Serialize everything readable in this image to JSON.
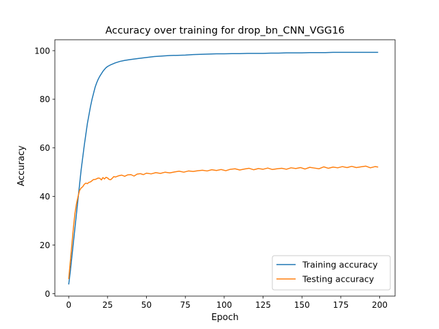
{
  "chart_data": {
    "type": "line",
    "title": "Accuracy over training for drop_bn_CNN_VGG16",
    "xlabel": "Epoch",
    "ylabel": "Accuracy",
    "xlim": [
      -8.9,
      209.9
    ],
    "ylim": [
      -1,
      104.5
    ],
    "xticks": [
      0,
      25,
      50,
      75,
      100,
      125,
      150,
      175,
      200
    ],
    "yticks": [
      0,
      20,
      40,
      60,
      80,
      100
    ],
    "grid": false,
    "legend_position": "bottom-right",
    "series": [
      {
        "name": "Training accuracy",
        "color": "#1f77b4",
        "x": [
          0,
          1,
          2,
          3,
          4,
          5,
          6,
          7,
          8,
          9,
          10,
          11,
          12,
          13,
          14,
          15,
          16,
          17,
          18,
          19,
          20,
          21,
          22,
          23,
          24,
          25,
          27,
          30,
          33,
          36,
          40,
          45,
          50,
          55,
          60,
          65,
          70,
          75,
          80,
          85,
          90,
          95,
          100,
          105,
          110,
          115,
          120,
          125,
          130,
          135,
          140,
          145,
          150,
          155,
          160,
          165,
          170,
          175,
          180,
          185,
          190,
          195,
          199
        ],
        "values": [
          3.8,
          9,
          15,
          21,
          27,
          33,
          39,
          45,
          51,
          56,
          61,
          65.5,
          70,
          73.5,
          77,
          80,
          82.5,
          85,
          86.8,
          88.3,
          89.5,
          90.5,
          91.5,
          92.3,
          93,
          93.5,
          94.2,
          95,
          95.6,
          96,
          96.4,
          96.8,
          97.2,
          97.6,
          97.8,
          98,
          98.1,
          98.2,
          98.4,
          98.5,
          98.6,
          98.7,
          98.7,
          98.8,
          98.8,
          98.9,
          98.9,
          98.9,
          99,
          99,
          99.1,
          99.1,
          99.1,
          99.2,
          99.2,
          99.2,
          99.3,
          99.3,
          99.3,
          99.3,
          99.3,
          99.3,
          99.3
        ]
      },
      {
        "name": "Testing accuracy",
        "color": "#ff7f0e",
        "x": [
          0,
          1,
          2,
          3,
          4,
          5,
          6,
          7,
          8,
          9,
          10,
          11,
          12,
          13,
          14,
          15,
          16,
          17,
          18,
          19,
          20,
          21,
          22,
          23,
          24,
          25,
          26,
          27,
          28,
          29,
          30,
          32,
          34,
          36,
          38,
          40,
          42,
          44,
          46,
          48,
          50,
          53,
          56,
          59,
          62,
          65,
          68,
          71,
          74,
          77,
          80,
          83,
          86,
          89,
          92,
          95,
          98,
          101,
          104,
          107,
          110,
          113,
          116,
          119,
          122,
          125,
          128,
          131,
          134,
          137,
          140,
          143,
          146,
          149,
          152,
          155,
          158,
          161,
          164,
          167,
          170,
          173,
          176,
          179,
          182,
          185,
          188,
          191,
          194,
          197,
          199
        ],
        "values": [
          6,
          13,
          20,
          27,
          33,
          37,
          40,
          42.5,
          43.5,
          44,
          45,
          45.5,
          45.3,
          45.8,
          46,
          46.5,
          47,
          47,
          47.3,
          47.6,
          47.5,
          46.8,
          47.8,
          47.2,
          47.9,
          47.6,
          47,
          46.9,
          47.5,
          48.2,
          48,
          48.5,
          48.8,
          48.3,
          48.9,
          49,
          48.4,
          49.2,
          49.4,
          49,
          49.6,
          49.3,
          49.8,
          49.5,
          50,
          49.7,
          50.1,
          50.4,
          50,
          50.5,
          50.3,
          50.6,
          50.8,
          50.5,
          51,
          50.7,
          51.1,
          50.6,
          51.2,
          51.4,
          50.9,
          51.3,
          51.6,
          51,
          51.5,
          51.2,
          51.7,
          51.1,
          51.4,
          51.6,
          51.2,
          51.8,
          51.5,
          51.9,
          51.3,
          52,
          51.7,
          51.4,
          52.2,
          51.6,
          52.1,
          51.8,
          52.3,
          51.9,
          52.4,
          51.9,
          52.2,
          52.5,
          51.8,
          52.3,
          52.1
        ]
      }
    ]
  }
}
